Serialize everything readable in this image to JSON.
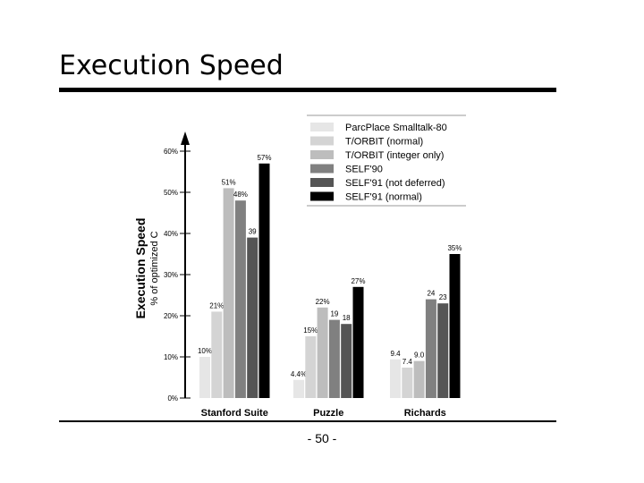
{
  "slide": {
    "title": "Execution Speed",
    "page_number": "- 50 -"
  },
  "chart_data": {
    "type": "bar",
    "ylabel": "Execution Speed",
    "ylabel_sub": "% of optimized C",
    "ylim": [
      0,
      60
    ],
    "yticks": [
      "0%",
      "10%",
      "20%",
      "30%",
      "40%",
      "50%",
      "60%"
    ],
    "grid": false,
    "legend_position": "top-right",
    "categories": [
      "Stanford Suite",
      "Puzzle",
      "Richards"
    ],
    "series": [
      {
        "name": "ParcPlace Smalltalk-80",
        "color": "#e6e6e6",
        "values": [
          10,
          4.4,
          9.4
        ],
        "labels": [
          "10%",
          "4.4%",
          "9.4"
        ]
      },
      {
        "name": "T/ORBIT (normal)",
        "color": "#d4d4d4",
        "values": [
          21,
          15,
          7.4
        ],
        "labels": [
          "21%",
          "15%",
          "7.4"
        ]
      },
      {
        "name": "T/ORBIT (integer only)",
        "color": "#bdbdbd",
        "values": [
          51,
          22,
          9.0
        ],
        "labels": [
          "51%",
          "22%",
          "9.0"
        ]
      },
      {
        "name": "SELF'90",
        "color": "#808080",
        "values": [
          48,
          19,
          24
        ],
        "labels": [
          "48%",
          "19",
          "24"
        ]
      },
      {
        "name": "SELF'91 (not deferred)",
        "color": "#555555",
        "values": [
          39,
          18,
          23
        ],
        "labels": [
          "39",
          "18",
          "23"
        ]
      },
      {
        "name": "SELF'91 (normal)",
        "color": "#000000",
        "values": [
          57,
          27,
          35
        ],
        "labels": [
          "57%",
          "27%",
          "35%"
        ]
      }
    ]
  }
}
